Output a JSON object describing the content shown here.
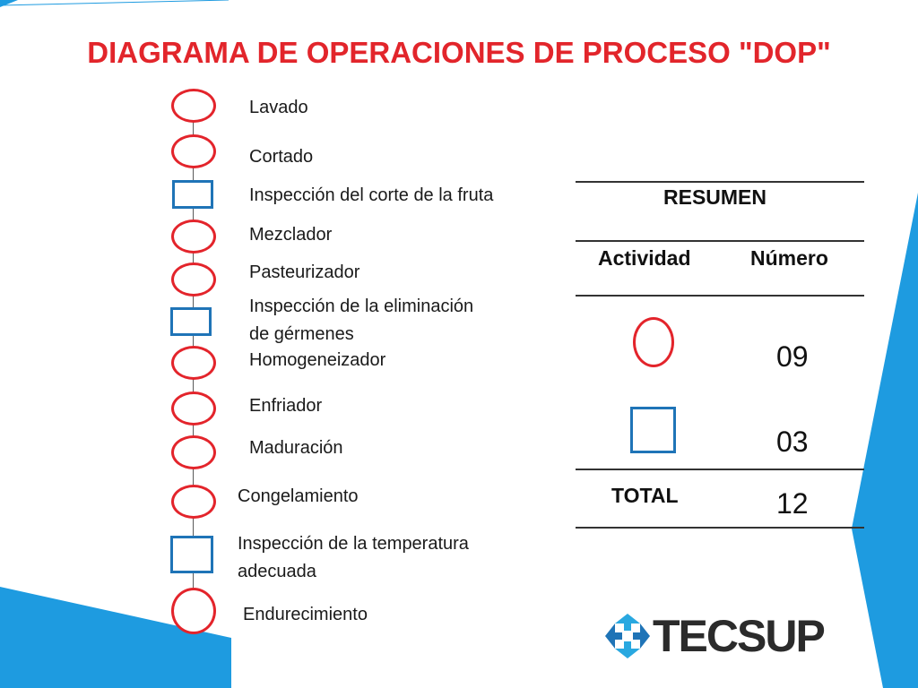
{
  "slide": {
    "title": "DIAGRAMA DE OPERACIONES DE PROCESO \"DOP\"",
    "accent_red": "#e3242b",
    "accent_blue": "#1f74b7",
    "frame_blue": "#1e9be0"
  },
  "flow_steps": [
    {
      "shape": "operation",
      "label": "Lavado"
    },
    {
      "shape": "operation",
      "label": "Cortado"
    },
    {
      "shape": "inspection",
      "label": "Inspección del corte de la fruta"
    },
    {
      "shape": "operation",
      "label": "Mezclador"
    },
    {
      "shape": "operation",
      "label": "Pasteurizador"
    },
    {
      "shape": "inspection",
      "label": "Inspección de la eliminación",
      "label2": "de gérmenes"
    },
    {
      "shape": "operation",
      "label": "Homogeneizador"
    },
    {
      "shape": "operation",
      "label": "Enfriador"
    },
    {
      "shape": "operation",
      "label": "Maduración"
    },
    {
      "shape": "operation",
      "label": "Congelamiento"
    },
    {
      "shape": "inspection",
      "label": "Inspección de la temperatura",
      "label2": "adecuada"
    },
    {
      "shape": "operation",
      "label": "Endurecimiento"
    }
  ],
  "summary": {
    "title": "RESUMEN",
    "col_activity": "Actividad",
    "col_number": "Número",
    "operations_count": "09",
    "inspections_count": "03",
    "total_label": "TOTAL",
    "total_value": "12"
  },
  "logo": {
    "text": "TECSUP",
    "icon": "tecsup-logo-icon"
  }
}
